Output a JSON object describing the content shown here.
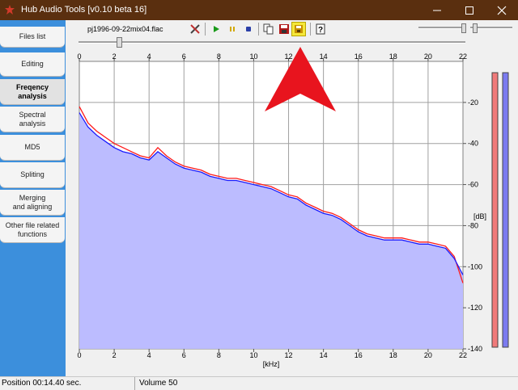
{
  "window": {
    "title": "Hub Audio Tools [v0.10 beta 16]"
  },
  "sidebar": {
    "items": [
      {
        "label": "Files list"
      },
      {
        "label": "Editing"
      },
      {
        "label": "Freqency analysis",
        "active": true
      },
      {
        "label": "Spectral analysis"
      },
      {
        "label": "MD5"
      },
      {
        "label": "Spliting"
      },
      {
        "label": "Merging and aligning"
      },
      {
        "label": "Other file related functions"
      }
    ]
  },
  "toolbar": {
    "file_name": "pj1996-09-22mix04.flac",
    "buttons": [
      {
        "icon": "tools-icon"
      },
      {
        "icon": "play-icon"
      },
      {
        "icon": "pause-icon"
      },
      {
        "icon": "stop-icon"
      },
      {
        "icon": "copy-icon"
      },
      {
        "icon": "save-as-icon"
      },
      {
        "icon": "save-icon",
        "highlighted": true
      },
      {
        "icon": "help-icon"
      }
    ]
  },
  "status": {
    "position": "Position 00:14.40 sec.",
    "volume": "Volume 50"
  },
  "colors": {
    "channel_left": "#ff1a1a",
    "channel_right": "#1a1aff",
    "fill": "#bcbcff",
    "titlebar": "#5a2f0f",
    "sidebar": "#3c8fdc",
    "highlight": "#f5e83a",
    "annotation_arrow": "#e8141e"
  },
  "chart_data": {
    "type": "line",
    "xlabel": "[kHz]",
    "ylabel": "[dB]",
    "xlim": [
      0,
      22
    ],
    "ylim": [
      -140,
      0
    ],
    "xticks": [
      "0",
      "2",
      "4",
      "6",
      "8",
      "10",
      "12",
      "14",
      "16",
      "18",
      "20",
      "22"
    ],
    "yticks": [
      "-20",
      "-40",
      "-60",
      "-80",
      "-100",
      "-120",
      "-140"
    ],
    "grid": true,
    "series": [
      {
        "color": "#ff1a1a",
        "x": [
          0,
          0.5,
          1,
          1.5,
          2,
          2.5,
          3,
          3.5,
          4,
          4.5,
          5,
          5.5,
          6,
          6.5,
          7,
          7.5,
          8,
          8.5,
          9,
          9.5,
          10,
          10.5,
          11,
          11.5,
          12,
          12.5,
          13,
          13.5,
          14,
          14.5,
          15,
          15.5,
          16,
          16.5,
          17,
          17.5,
          18,
          18.5,
          19,
          19.5,
          20,
          20.5,
          21,
          21.5,
          22
        ],
        "values": [
          -22,
          -30,
          -34,
          -37,
          -40,
          -42,
          -44,
          -46,
          -47,
          -42,
          -46,
          -49,
          -51,
          -52,
          -53,
          -55,
          -56,
          -57,
          -57,
          -58,
          -59,
          -60,
          -61,
          -63,
          -65,
          -66,
          -69,
          -71,
          -73,
          -74,
          -76,
          -79,
          -82,
          -84,
          -85,
          -86,
          -86,
          -86,
          -87,
          -88,
          -88,
          -89,
          -90,
          -95,
          -108
        ]
      },
      {
        "color": "#1a1aff",
        "x": [
          0,
          0.5,
          1,
          1.5,
          2,
          2.5,
          3,
          3.5,
          4,
          4.5,
          5,
          5.5,
          6,
          6.5,
          7,
          7.5,
          8,
          8.5,
          9,
          9.5,
          10,
          10.5,
          11,
          11.5,
          12,
          12.5,
          13,
          13.5,
          14,
          14.5,
          15,
          15.5,
          16,
          16.5,
          17,
          17.5,
          18,
          18.5,
          19,
          19.5,
          20,
          20.5,
          21,
          21.5,
          22
        ],
        "values": [
          -25,
          -32,
          -36,
          -39,
          -42,
          -44,
          -45,
          -47,
          -48,
          -44,
          -47,
          -50,
          -52,
          -53,
          -54,
          -56,
          -57,
          -58,
          -58,
          -59,
          -60,
          -61,
          -62,
          -64,
          -66,
          -67,
          -70,
          -72,
          -74,
          -75,
          -77,
          -80,
          -83,
          -85,
          -86,
          -87,
          -87,
          -87,
          -88,
          -89,
          -89,
          -90,
          -91,
          -96,
          -104
        ]
      }
    ]
  }
}
